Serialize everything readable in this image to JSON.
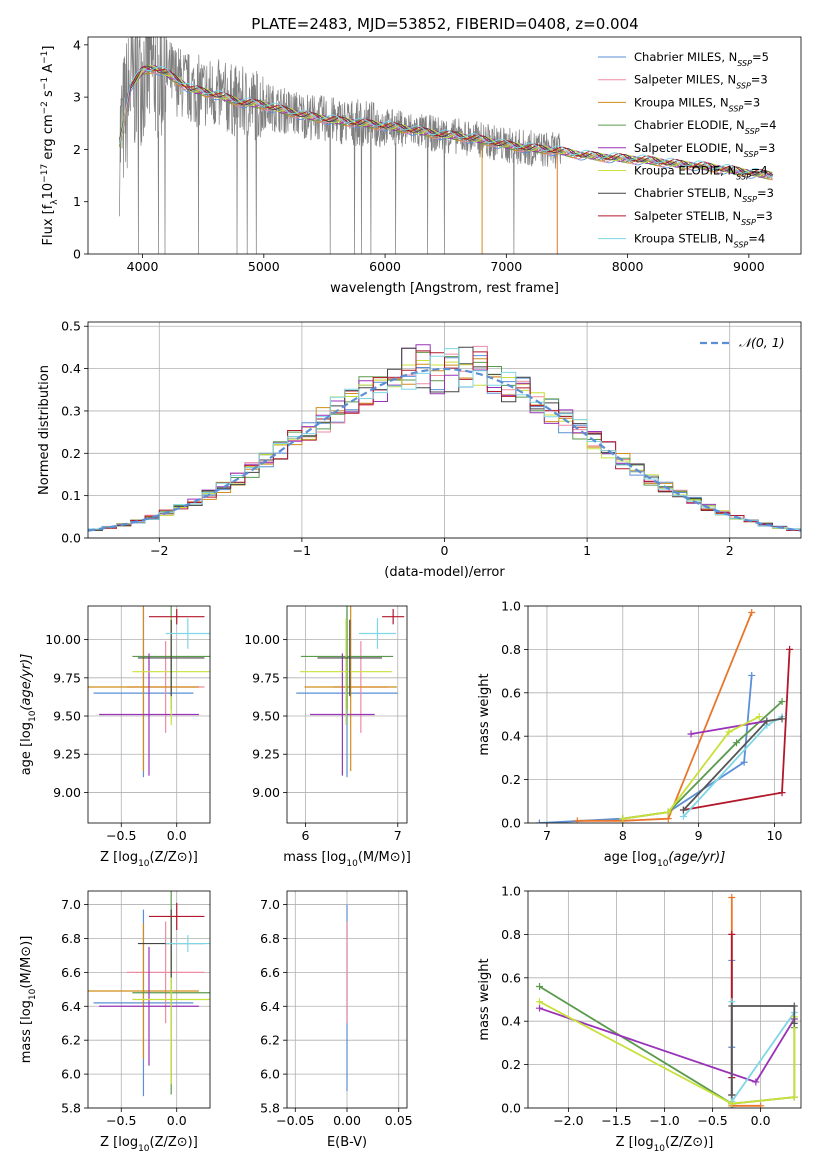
{
  "figure": {
    "title": "PLATE=2483, MJD=53852, FIBERID=0408, z=0.004"
  },
  "colors": {
    "models": [
      "#5b8fd6",
      "#ef8aa2",
      "#d18c1a",
      "#5a9a4d",
      "#9a33b8",
      "#c8e03a",
      "#444444",
      "#b2182b",
      "#7fd6e6"
    ],
    "data_gray": "#7f7f7f",
    "mix_lines": [
      "#5b8fd6",
      "#e8772b",
      "#5a9a4d",
      "#b2182b",
      "#9a33b8",
      "#7fd6e6",
      "#c8e03a",
      "#555555"
    ],
    "gauss": "#5b8fd6"
  },
  "chart_data": [
    {
      "id": "spectrum",
      "type": "line",
      "title": "PLATE=2483, MJD=53852, FIBERID=0408, z=0.004",
      "xlabel": "wavelength [Angstrom, rest frame]",
      "ylabel": "Flux [f_λ 10^-17 erg cm^-2 s^-1 A^-1]",
      "xlim": [
        3550,
        9430
      ],
      "ylim": [
        0,
        4.15
      ],
      "xticks": [
        4000,
        5000,
        6000,
        7000,
        8000,
        9000
      ],
      "yticks": [
        0,
        1,
        2,
        3,
        4
      ],
      "legend_position": "top-right",
      "legend": [
        {
          "model": "Chabrier MILES,",
          "nssp": "5"
        },
        {
          "model": "Salpeter MILES,",
          "nssp": "3"
        },
        {
          "model": "Kroupa MILES,",
          "nssp": "3"
        },
        {
          "model": "Chabrier ELODIE,",
          "nssp": "4"
        },
        {
          "model": "Salpeter ELODIE,",
          "nssp": "3"
        },
        {
          "model": "Kroupa ELODIE,",
          "nssp": "4"
        },
        {
          "model": "Chabrier STELIB,",
          "nssp": "3"
        },
        {
          "model": "Salpeter STELIB,",
          "nssp": "3"
        },
        {
          "model": "Kroupa STELIB,",
          "nssp": "4"
        }
      ],
      "model_continuum": {
        "x": [
          3800,
          3900,
          4000,
          4100,
          4200,
          4400,
          4600,
          4800,
          5000,
          5200,
          5400,
          5600,
          5800,
          6000,
          6200,
          6400,
          6600,
          6800,
          7000,
          7200,
          7400,
          7600,
          7800,
          8000,
          8200,
          8400,
          8600,
          8800,
          9000,
          9200
        ],
        "y": [
          2.0,
          3.2,
          3.5,
          3.55,
          3.45,
          3.15,
          3.05,
          2.9,
          2.85,
          2.72,
          2.62,
          2.55,
          2.5,
          2.45,
          2.38,
          2.3,
          2.25,
          2.18,
          2.08,
          2.02,
          1.98,
          1.9,
          1.85,
          1.82,
          1.78,
          1.72,
          1.68,
          1.62,
          1.55,
          1.5
        ]
      }
    },
    {
      "id": "residuals",
      "type": "line",
      "xlabel": "(data-model)/error",
      "ylabel": "Normed distribution",
      "xlim": [
        -2.5,
        2.5
      ],
      "ylim": [
        0,
        0.51
      ],
      "xticks": [
        -2,
        -1,
        0,
        1,
        2
      ],
      "yticks": [
        0.0,
        0.1,
        0.2,
        0.3,
        0.4,
        0.5
      ],
      "legend_position": "top-right",
      "legend": "𝒩(0, 1)",
      "series": [
        {
          "name": "N(0,1)",
          "function": "gaussian",
          "mu": 0,
          "sigma": 1
        }
      ],
      "histogram_bin_width": 0.1
    },
    {
      "id": "age_vs_Z",
      "type": "scatter",
      "xlabel": "Z [log10(Z/Z⊙)]",
      "ylabel": "age  [log10(age/yr)]",
      "xlim": [
        -0.8,
        0.3
      ],
      "ylim": [
        8.8,
        10.22
      ],
      "xticks": [
        -0.5,
        0.0
      ],
      "yticks": [
        9.0,
        9.25,
        9.5,
        9.75,
        10.0
      ],
      "points": [
        {
          "x": -0.3,
          "y": 9.65,
          "xerr": 0.45,
          "yerr": 0.55
        },
        {
          "x": -0.1,
          "y": 9.69,
          "xerr": 0.35,
          "yerr": 0.3
        },
        {
          "x": -0.3,
          "y": 9.69,
          "xerr": 0.5,
          "yerr": 0.55
        },
        {
          "x": -0.05,
          "y": 9.89,
          "xerr": 0.35,
          "yerr": 0.35
        },
        {
          "x": -0.25,
          "y": 9.51,
          "xerr": 0.45,
          "yerr": 0.4
        },
        {
          "x": -0.05,
          "y": 9.79,
          "xerr": 0.35,
          "yerr": 0.35
        },
        {
          "x": -0.05,
          "y": 9.88,
          "xerr": 0.3,
          "yerr": 0.25
        },
        {
          "x": 0.0,
          "y": 10.15,
          "xerr": 0.25,
          "yerr": 0.05
        },
        {
          "x": 0.1,
          "y": 10.04,
          "xerr": 0.2,
          "yerr": 0.1
        }
      ]
    },
    {
      "id": "age_vs_mass",
      "type": "scatter",
      "xlabel": "mass [log10(M/M⊙)]",
      "ylabel": "",
      "xlim": [
        5.8,
        7.1
      ],
      "ylim": [
        8.8,
        10.22
      ],
      "xticks": [
        6,
        7
      ],
      "yticks": [
        9.0,
        9.25,
        9.5,
        9.75,
        10.0
      ],
      "points": [
        {
          "x": 6.45,
          "y": 9.65,
          "xerr": 0.55,
          "yerr": 0.55
        },
        {
          "x": 6.6,
          "y": 9.69,
          "xerr": 0.3,
          "yerr": 0.3
        },
        {
          "x": 6.49,
          "y": 9.69,
          "xerr": 0.5,
          "yerr": 0.55
        },
        {
          "x": 6.45,
          "y": 9.89,
          "xerr": 0.5,
          "yerr": 0.35
        },
        {
          "x": 6.4,
          "y": 9.51,
          "xerr": 0.35,
          "yerr": 0.4
        },
        {
          "x": 6.44,
          "y": 9.79,
          "xerr": 0.5,
          "yerr": 0.35
        },
        {
          "x": 6.48,
          "y": 9.88,
          "xerr": 0.35,
          "yerr": 0.25
        },
        {
          "x": 6.95,
          "y": 10.15,
          "xerr": 0.12,
          "yerr": 0.05
        },
        {
          "x": 6.78,
          "y": 10.04,
          "xerr": 0.2,
          "yerr": 0.1
        }
      ]
    },
    {
      "id": "weight_vs_age",
      "type": "line",
      "xlabel": "age  [log10(age/yr)]",
      "ylabel": "mass weight",
      "xlim": [
        6.75,
        10.35
      ],
      "ylim": [
        0,
        1.0
      ],
      "xticks": [
        7,
        8,
        9,
        10
      ],
      "yticks": [
        0.0,
        0.2,
        0.4,
        0.6,
        0.8,
        1.0
      ],
      "series": [
        {
          "x": [
            6.9,
            8.0,
            8.6,
            9.6,
            9.7
          ],
          "y": [
            0.0,
            0.02,
            0.05,
            0.28,
            0.68
          ]
        },
        {
          "x": [
            7.4,
            8.0,
            8.6,
            9.7
          ],
          "y": [
            0.01,
            0.01,
            0.02,
            0.97
          ]
        },
        {
          "x": [
            8.0,
            8.6,
            9.5,
            10.1
          ],
          "y": [
            0.02,
            0.05,
            0.37,
            0.56
          ]
        },
        {
          "x": [
            8.8,
            10.1,
            10.2
          ],
          "y": [
            0.06,
            0.14,
            0.8
          ]
        },
        {
          "x": [
            8.9,
            9.9
          ],
          "y": [
            0.41,
            0.47
          ]
        },
        {
          "x": [
            8.8,
            9.9,
            10.1
          ],
          "y": [
            0.03,
            0.45,
            0.49
          ]
        },
        {
          "x": [
            8.0,
            8.6,
            9.4,
            9.8
          ],
          "y": [
            0.02,
            0.05,
            0.42,
            0.49
          ]
        },
        {
          "x": [
            8.8,
            9.9,
            10.1
          ],
          "y": [
            0.06,
            0.47,
            0.48
          ]
        }
      ]
    },
    {
      "id": "mass_vs_Z",
      "type": "scatter",
      "xlabel": "Z [log10(Z/Z⊙)]",
      "ylabel": "mass [log10(M/M⊙)]",
      "xlim": [
        -0.8,
        0.3
      ],
      "ylim": [
        5.8,
        7.08
      ],
      "xticks": [
        -0.5,
        0.0
      ],
      "yticks": [
        5.8,
        6.0,
        6.2,
        6.4,
        6.6,
        6.8,
        7.0
      ],
      "points": [
        {
          "x": -0.3,
          "y": 6.42,
          "xerr": 0.45,
          "yerr": 0.55
        },
        {
          "x": -0.1,
          "y": 6.6,
          "xerr": 0.35,
          "yerr": 0.3
        },
        {
          "x": -0.3,
          "y": 6.49,
          "xerr": 0.5,
          "yerr": 0.4
        },
        {
          "x": -0.05,
          "y": 6.48,
          "xerr": 0.35,
          "yerr": 0.6
        },
        {
          "x": -0.25,
          "y": 6.4,
          "xerr": 0.45,
          "yerr": 0.35
        },
        {
          "x": -0.05,
          "y": 6.44,
          "xerr": 0.35,
          "yerr": 0.5
        },
        {
          "x": -0.05,
          "y": 6.77,
          "xerr": 0.3,
          "yerr": 0.2
        },
        {
          "x": 0.0,
          "y": 6.93,
          "xerr": 0.25,
          "yerr": 0.08
        },
        {
          "x": 0.1,
          "y": 6.77,
          "xerr": 0.2,
          "yerr": 0.05
        }
      ]
    },
    {
      "id": "mass_vs_ebv",
      "type": "scatter",
      "xlabel": "E(B-V)",
      "ylabel": "",
      "xlim": [
        -0.058,
        0.058
      ],
      "ylim": [
        5.8,
        7.08
      ],
      "xticks": [
        -0.05,
        0.0,
        0.05
      ],
      "yticks": [
        5.8,
        6.0,
        6.2,
        6.4,
        6.6,
        6.8,
        7.0
      ],
      "points": [
        {
          "x": 0.0,
          "y": 6.45,
          "xerr": 0.0,
          "yerr": 0.55
        },
        {
          "x": 0.0,
          "y": 6.6,
          "xerr": 0.0,
          "yerr": 0.3
        }
      ]
    },
    {
      "id": "weight_vs_Z",
      "type": "line",
      "xlabel": "Z [log10(Z/Z⊙)]",
      "ylabel": "mass weight",
      "xlim": [
        -2.42,
        0.42
      ],
      "ylim": [
        0,
        1.0
      ],
      "xticks": [
        -2.0,
        -1.5,
        -1.0,
        -0.5,
        0.0
      ],
      "yticks": [
        0.0,
        0.2,
        0.4,
        0.6,
        0.8,
        1.0
      ],
      "series": [
        {
          "x": [
            -0.3,
            -0.3,
            -0.3,
            -0.3
          ],
          "y": [
            0.0,
            0.02,
            0.28,
            0.68
          ]
        },
        {
          "x": [
            -0.3,
            -0.3,
            -0.3,
            0.0
          ],
          "y": [
            0.97,
            0.02,
            0.01,
            0.01
          ]
        },
        {
          "x": [
            -2.3,
            -0.3,
            0.35,
            0.35
          ],
          "y": [
            0.56,
            0.02,
            0.05,
            0.37
          ]
        },
        {
          "x": [
            -0.3,
            -0.3,
            -0.3
          ],
          "y": [
            0.8,
            0.06,
            0.14
          ]
        },
        {
          "x": [
            -2.3,
            -0.05,
            0.35
          ],
          "y": [
            0.46,
            0.12,
            0.41
          ]
        },
        {
          "x": [
            -0.3,
            -0.3,
            0.35
          ],
          "y": [
            0.49,
            0.03,
            0.44
          ]
        },
        {
          "x": [
            -2.3,
            -0.3,
            0.35,
            0.35
          ],
          "y": [
            0.49,
            0.02,
            0.05,
            0.42
          ]
        },
        {
          "x": [
            -0.3,
            -0.3,
            0.35,
            0.35
          ],
          "y": [
            0.06,
            0.47,
            0.47,
            0.39
          ]
        }
      ]
    }
  ]
}
